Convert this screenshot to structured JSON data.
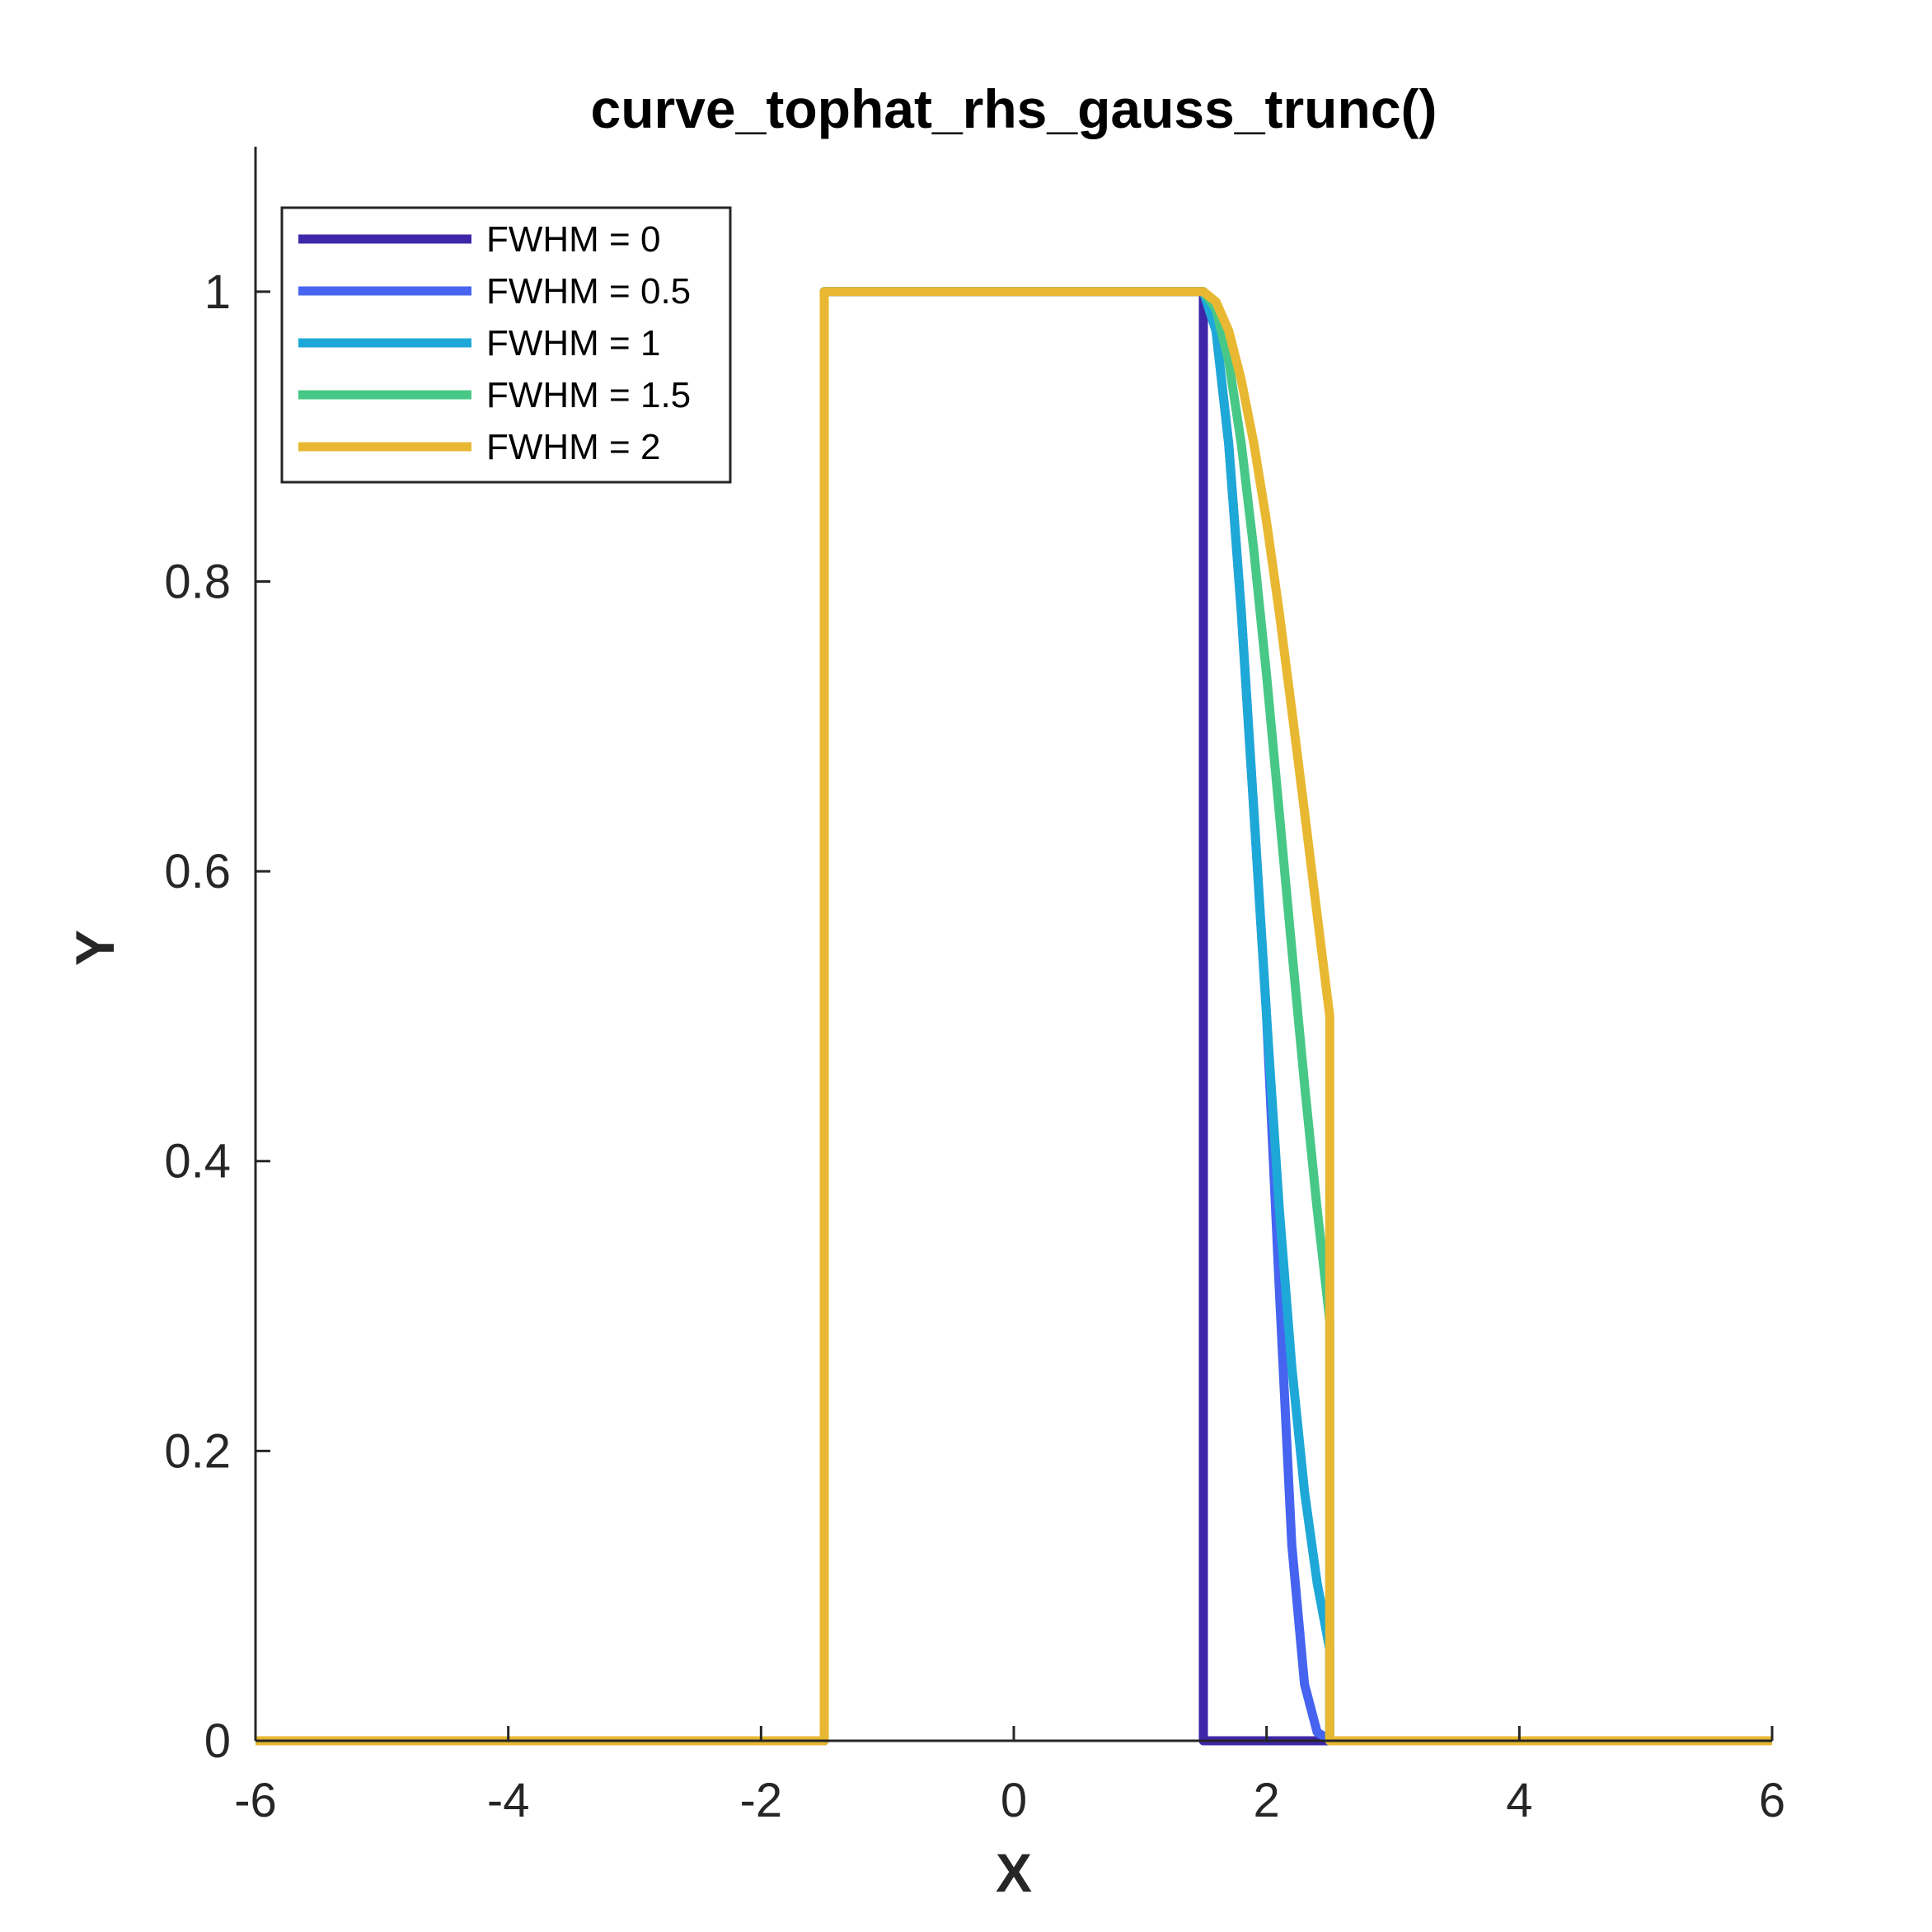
{
  "chart_data": {
    "type": "line",
    "title": "curve_tophat_rhs_gauss_trunc()",
    "xlabel": "X",
    "ylabel": "Y",
    "xlim": [
      -6,
      6
    ],
    "ylim": [
      0,
      1.1
    ],
    "xticks": [
      "-6",
      "-4",
      "-2",
      "0",
      "2",
      "4",
      "6"
    ],
    "yticks": [
      "0",
      "0.2",
      "0.4",
      "0.6",
      "0.8",
      "1"
    ],
    "grid": false,
    "legend_position": "top-left",
    "series": [
      {
        "name": "FWHM = 0",
        "color": "#3E26A8",
        "x": [
          -6,
          -1.5,
          -1.5,
          1.5,
          1.5,
          6
        ],
        "y": [
          0,
          0,
          1,
          1,
          0,
          0
        ]
      },
      {
        "name": "FWHM = 0.5",
        "color": "#4664F0",
        "x": [
          -6,
          -1.5,
          -1.5,
          1.5,
          1.6,
          1.7,
          1.8,
          1.9,
          2.0,
          2.1,
          2.2,
          2.3,
          2.4,
          2.5,
          2.5,
          6
        ],
        "y": [
          0,
          0,
          1,
          1,
          0.973,
          0.895,
          0.779,
          0.641,
          0.5,
          0.313,
          0.135,
          0.039,
          0.006,
          0.0005,
          0,
          0
        ]
      },
      {
        "name": "FWHM = 1",
        "color": "#1EA8D8",
        "x": [
          -6,
          -1.5,
          -1.5,
          1.5,
          1.6,
          1.7,
          1.8,
          1.9,
          2.0,
          2.1,
          2.2,
          2.3,
          2.4,
          2.5,
          2.5,
          6
        ],
        "y": [
          0,
          0,
          1,
          1,
          0.973,
          0.895,
          0.779,
          0.641,
          0.5,
          0.368,
          0.258,
          0.172,
          0.109,
          0.063,
          0,
          0
        ]
      },
      {
        "name": "FWHM = 1.5",
        "color": "#48C886",
        "x": [
          -6,
          -1.5,
          -1.5,
          1.5,
          1.6,
          1.7,
          1.8,
          1.9,
          2.0,
          2.1,
          2.2,
          2.3,
          2.4,
          2.5,
          2.5,
          6
        ],
        "y": [
          0,
          0,
          1,
          1,
          0.988,
          0.952,
          0.895,
          0.821,
          0.735,
          0.641,
          0.546,
          0.453,
          0.367,
          0.29,
          0,
          0
        ]
      },
      {
        "name": "FWHM = 2",
        "color": "#E8B832",
        "x": [
          -6,
          -1.5,
          -1.5,
          1.5,
          1.6,
          1.7,
          1.8,
          1.9,
          2.0,
          2.1,
          2.2,
          2.3,
          2.4,
          2.5,
          2.5,
          6
        ],
        "y": [
          0,
          0,
          1,
          1,
          0.993,
          0.973,
          0.939,
          0.895,
          0.841,
          0.779,
          0.711,
          0.641,
          0.57,
          0.5,
          0,
          0
        ]
      }
    ]
  }
}
